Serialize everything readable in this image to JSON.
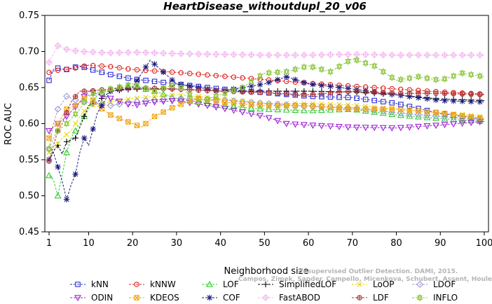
{
  "chart_data": {
    "type": "line",
    "title": "HeartDisease_withoutdupl_20_v06",
    "xlabel": "Neighborhood size",
    "ylabel": "ROC AUC",
    "xlim": [
      1,
      100
    ],
    "ylim": [
      0.45,
      0.75
    ],
    "xticks": [
      1,
      10,
      20,
      30,
      40,
      50,
      60,
      70,
      80,
      90,
      100
    ],
    "yticks": [
      0.45,
      0.5,
      0.55,
      0.6,
      0.65,
      0.7,
      0.75
    ],
    "grid": false,
    "legend_position": "bottom",
    "watermark": [
      "Unsupervised Outlier Detection. DAMI, 2015.",
      "Campos, Zimek, Sander, Campello, Micenkova, Schubert, Assent, Houle"
    ],
    "series": [
      {
        "name": "kNN",
        "color": "#2b2bd6",
        "marker": "square",
        "points": [
          [
            1,
            0.66
          ],
          [
            2,
            0.675
          ],
          [
            3,
            0.677
          ],
          [
            5,
            0.675
          ],
          [
            8,
            0.68
          ],
          [
            10,
            0.676
          ],
          [
            15,
            0.668
          ],
          [
            20,
            0.662
          ],
          [
            30,
            0.655
          ],
          [
            40,
            0.648
          ],
          [
            50,
            0.643
          ],
          [
            60,
            0.638
          ],
          [
            70,
            0.636
          ],
          [
            80,
            0.628
          ],
          [
            90,
            0.614
          ],
          [
            100,
            0.606
          ]
        ]
      },
      {
        "name": "kNNW",
        "color": "#e0201a",
        "marker": "circle",
        "points": [
          [
            1,
            0.671
          ],
          [
            3,
            0.674
          ],
          [
            6,
            0.676
          ],
          [
            10,
            0.681
          ],
          [
            15,
            0.679
          ],
          [
            20,
            0.675
          ],
          [
            30,
            0.671
          ],
          [
            40,
            0.666
          ],
          [
            50,
            0.661
          ],
          [
            60,
            0.656
          ],
          [
            70,
            0.652
          ],
          [
            80,
            0.648
          ],
          [
            90,
            0.644
          ],
          [
            100,
            0.641
          ]
        ]
      },
      {
        "name": "LOF",
        "color": "#33cc33",
        "marker": "triangle-up",
        "points": [
          [
            1,
            0.528
          ],
          [
            2,
            0.522
          ],
          [
            3,
            0.5
          ],
          [
            4,
            0.53
          ],
          [
            5,
            0.56
          ],
          [
            6,
            0.58
          ],
          [
            8,
            0.6
          ],
          [
            10,
            0.62
          ],
          [
            12,
            0.64
          ],
          [
            15,
            0.648
          ],
          [
            20,
            0.652
          ],
          [
            25,
            0.645
          ],
          [
            30,
            0.635
          ],
          [
            40,
            0.625
          ],
          [
            50,
            0.62
          ],
          [
            60,
            0.618
          ],
          [
            70,
            0.62
          ],
          [
            80,
            0.612
          ],
          [
            90,
            0.607
          ],
          [
            100,
            0.603
          ]
        ]
      },
      {
        "name": "SimplifiedLOF",
        "color": "#000000",
        "marker": "plus",
        "points": [
          [
            1,
            0.55
          ],
          [
            2,
            0.562
          ],
          [
            3,
            0.57
          ],
          [
            4,
            0.558
          ],
          [
            5,
            0.575
          ],
          [
            7,
            0.58
          ],
          [
            9,
            0.61
          ],
          [
            10,
            0.625
          ],
          [
            12,
            0.63
          ],
          [
            15,
            0.645
          ],
          [
            20,
            0.648
          ],
          [
            25,
            0.648
          ],
          [
            30,
            0.648
          ],
          [
            40,
            0.645
          ],
          [
            50,
            0.645
          ],
          [
            60,
            0.645
          ],
          [
            70,
            0.644
          ],
          [
            80,
            0.64
          ],
          [
            90,
            0.634
          ],
          [
            100,
            0.632
          ]
        ]
      },
      {
        "name": "LoOP",
        "color": "#e6d800",
        "marker": "x",
        "points": [
          [
            1,
            0.56
          ],
          [
            2,
            0.565
          ],
          [
            4,
            0.58
          ],
          [
            6,
            0.59
          ],
          [
            8,
            0.61
          ],
          [
            10,
            0.625
          ],
          [
            15,
            0.63
          ],
          [
            20,
            0.635
          ],
          [
            30,
            0.64
          ],
          [
            40,
            0.635
          ],
          [
            50,
            0.628
          ],
          [
            60,
            0.628
          ],
          [
            70,
            0.626
          ],
          [
            80,
            0.62
          ],
          [
            90,
            0.615
          ],
          [
            100,
            0.61
          ]
        ]
      },
      {
        "name": "LDOF",
        "color": "#9a9ad8",
        "marker": "diamond",
        "points": [
          [
            1,
            0.565
          ],
          [
            2,
            0.6
          ],
          [
            3,
            0.62
          ],
          [
            5,
            0.638
          ],
          [
            8,
            0.63
          ],
          [
            10,
            0.63
          ],
          [
            15,
            0.625
          ],
          [
            20,
            0.63
          ],
          [
            30,
            0.635
          ],
          [
            40,
            0.633
          ],
          [
            50,
            0.628
          ],
          [
            60,
            0.624
          ],
          [
            70,
            0.622
          ],
          [
            80,
            0.615
          ],
          [
            90,
            0.61
          ],
          [
            100,
            0.605
          ]
        ]
      },
      {
        "name": "ODIN",
        "color": "#9f20d8",
        "marker": "triangle-down",
        "points": [
          [
            1,
            0.59
          ],
          [
            3,
            0.6
          ],
          [
            5,
            0.61
          ],
          [
            8,
            0.63
          ],
          [
            10,
            0.645
          ],
          [
            15,
            0.635
          ],
          [
            20,
            0.625
          ],
          [
            25,
            0.63
          ],
          [
            30,
            0.632
          ],
          [
            40,
            0.622
          ],
          [
            50,
            0.61
          ],
          [
            55,
            0.6
          ],
          [
            60,
            0.598
          ],
          [
            70,
            0.595
          ],
          [
            80,
            0.594
          ],
          [
            90,
            0.598
          ],
          [
            100,
            0.603
          ]
        ]
      },
      {
        "name": "KDEOS",
        "color": "#f2a30f",
        "marker": "square-x",
        "points": [
          [
            1,
            0.58
          ],
          [
            2,
            0.6
          ],
          [
            3,
            0.6
          ],
          [
            5,
            0.62
          ],
          [
            7,
            0.625
          ],
          [
            10,
            0.64
          ],
          [
            12,
            0.625
          ],
          [
            15,
            0.612
          ],
          [
            20,
            0.6
          ],
          [
            22,
            0.595
          ],
          [
            25,
            0.61
          ],
          [
            30,
            0.625
          ],
          [
            35,
            0.635
          ],
          [
            40,
            0.63
          ],
          [
            50,
            0.625
          ],
          [
            60,
            0.625
          ],
          [
            70,
            0.62
          ],
          [
            80,
            0.62
          ],
          [
            90,
            0.615
          ],
          [
            100,
            0.607
          ]
        ]
      },
      {
        "name": "COF",
        "color": "#1a1a80",
        "marker": "star",
        "points": [
          [
            1,
            0.55
          ],
          [
            2,
            0.56
          ],
          [
            3,
            0.54
          ],
          [
            4,
            0.52
          ],
          [
            5,
            0.495
          ],
          [
            6,
            0.515
          ],
          [
            7,
            0.53
          ],
          [
            8,
            0.56
          ],
          [
            9,
            0.58
          ],
          [
            10,
            0.57
          ],
          [
            12,
            0.615
          ],
          [
            15,
            0.645
          ],
          [
            20,
            0.65
          ],
          [
            24,
            0.688
          ],
          [
            30,
            0.655
          ],
          [
            40,
            0.645
          ],
          [
            50,
            0.655
          ],
          [
            55,
            0.665
          ],
          [
            60,
            0.655
          ],
          [
            70,
            0.648
          ],
          [
            80,
            0.64
          ],
          [
            90,
            0.632
          ],
          [
            100,
            0.63
          ]
        ]
      },
      {
        "name": "FastABOD",
        "color": "#f5b6f0",
        "marker": "diamond-plus",
        "points": [
          [
            1,
            0.685
          ],
          [
            3,
            0.708
          ],
          [
            5,
            0.703
          ],
          [
            8,
            0.7
          ],
          [
            15,
            0.698
          ],
          [
            20,
            0.699
          ],
          [
            30,
            0.697
          ],
          [
            40,
            0.696
          ],
          [
            50,
            0.695
          ],
          [
            60,
            0.695
          ],
          [
            70,
            0.696
          ],
          [
            80,
            0.695
          ],
          [
            90,
            0.695
          ],
          [
            100,
            0.695
          ]
        ]
      },
      {
        "name": "LDF",
        "color": "#a83232",
        "marker": "circle-plus",
        "points": [
          [
            1,
            0.548
          ],
          [
            2,
            0.57
          ],
          [
            3,
            0.59
          ],
          [
            4,
            0.6
          ],
          [
            6,
            0.63
          ],
          [
            8,
            0.645
          ],
          [
            10,
            0.645
          ],
          [
            15,
            0.648
          ],
          [
            20,
            0.65
          ],
          [
            30,
            0.648
          ],
          [
            40,
            0.645
          ],
          [
            50,
            0.643
          ],
          [
            60,
            0.64
          ],
          [
            70,
            0.645
          ],
          [
            80,
            0.642
          ],
          [
            90,
            0.642
          ],
          [
            100,
            0.64
          ]
        ]
      },
      {
        "name": "INFLO",
        "color": "#8ec63f",
        "marker": "hexstar",
        "points": [
          [
            1,
            0.565
          ],
          [
            2,
            0.58
          ],
          [
            3,
            0.59
          ],
          [
            5,
            0.6
          ],
          [
            8,
            0.62
          ],
          [
            10,
            0.64
          ],
          [
            15,
            0.648
          ],
          [
            20,
            0.655
          ],
          [
            25,
            0.645
          ],
          [
            30,
            0.655
          ],
          [
            35,
            0.63
          ],
          [
            40,
            0.64
          ],
          [
            45,
            0.65
          ],
          [
            50,
            0.67
          ],
          [
            55,
            0.672
          ],
          [
            60,
            0.68
          ],
          [
            65,
            0.672
          ],
          [
            70,
            0.69
          ],
          [
            75,
            0.68
          ],
          [
            80,
            0.66
          ],
          [
            85,
            0.665
          ],
          [
            90,
            0.66
          ],
          [
            95,
            0.67
          ],
          [
            100,
            0.665
          ]
        ]
      }
    ]
  }
}
